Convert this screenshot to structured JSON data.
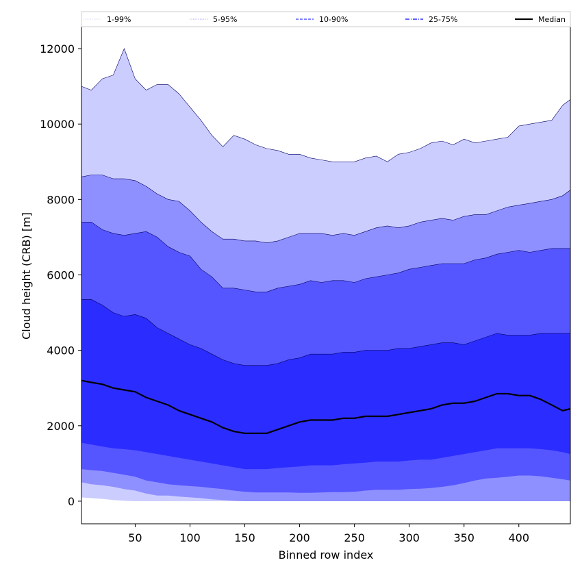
{
  "chart_data": {
    "type": "area",
    "xlabel": "Binned row index",
    "ylabel": "Cloud height (CRB) [m]",
    "xlim": [
      1,
      447
    ],
    "ylim": [
      -600,
      12600
    ],
    "x_ticks": [
      50,
      100,
      150,
      200,
      250,
      300,
      350,
      400
    ],
    "y_ticks": [
      0,
      2000,
      4000,
      6000,
      8000,
      10000,
      12000
    ],
    "grid": false,
    "legend_position": "top",
    "legend": [
      {
        "label": "1-99%",
        "style": "dotted"
      },
      {
        "label": "5-95%",
        "style": "dotted"
      },
      {
        "label": "10-90%",
        "style": "dashed"
      },
      {
        "label": "25-75%",
        "style": "dashdot"
      },
      {
        "label": "Median",
        "style": "solid"
      }
    ],
    "colors": {
      "band_1_99": "#cccdff",
      "band_5_95": "#8f90ff",
      "band_10_90": "#5556ff",
      "band_25_75": "#2b2cff",
      "median": "#000000"
    },
    "x": [
      1,
      10,
      20,
      30,
      40,
      50,
      60,
      70,
      80,
      90,
      100,
      110,
      120,
      130,
      140,
      150,
      160,
      170,
      180,
      190,
      200,
      210,
      220,
      230,
      240,
      250,
      260,
      270,
      280,
      290,
      300,
      310,
      320,
      330,
      340,
      350,
      360,
      370,
      380,
      390,
      400,
      410,
      420,
      430,
      440,
      447
    ],
    "series": [
      {
        "name": "1-99%",
        "lower": [
          100,
          80,
          60,
          30,
          10,
          0,
          0,
          0,
          0,
          0,
          0,
          0,
          0,
          0,
          0,
          0,
          0,
          0,
          0,
          0,
          0,
          0,
          0,
          0,
          0,
          0,
          0,
          0,
          0,
          0,
          0,
          0,
          0,
          0,
          0,
          10,
          50,
          100,
          150,
          200,
          230,
          200,
          180,
          200,
          180,
          180
        ],
        "upper": [
          11000,
          10900,
          11200,
          11300,
          12000,
          11200,
          10900,
          11050,
          11050,
          10800,
          10450,
          10100,
          9700,
          9400,
          9700,
          9600,
          9450,
          9350,
          9300,
          9200,
          9200,
          9100,
          9050,
          9000,
          9000,
          9000,
          9100,
          9150,
          9000,
          9200,
          9250,
          9350,
          9500,
          9550,
          9450,
          9600,
          9500,
          9550,
          9600,
          9650,
          9950,
          10000,
          10050,
          10100,
          10500,
          10650
        ]
      },
      {
        "name": "5-95%",
        "lower": [
          500,
          450,
          420,
          380,
          320,
          280,
          200,
          150,
          150,
          120,
          100,
          80,
          50,
          30,
          10,
          0,
          0,
          0,
          0,
          0,
          0,
          0,
          0,
          0,
          0,
          0,
          0,
          0,
          0,
          0,
          0,
          0,
          0,
          0,
          0,
          0,
          0,
          0,
          0,
          0,
          0,
          0,
          0,
          0,
          0,
          0
        ],
        "upper": [
          8600,
          8650,
          8650,
          8550,
          8550,
          8500,
          8350,
          8150,
          8000,
          7950,
          7700,
          7400,
          7150,
          6950,
          6950,
          6900,
          6900,
          6850,
          6900,
          7000,
          7100,
          7100,
          7100,
          7050,
          7100,
          7050,
          7150,
          7250,
          7300,
          7250,
          7300,
          7400,
          7450,
          7500,
          7450,
          7550,
          7600,
          7600,
          7700,
          7800,
          7850,
          7900,
          7950,
          8000,
          8100,
          8250
        ]
      },
      {
        "name": "10-90%",
        "lower": [
          850,
          820,
          800,
          750,
          700,
          650,
          550,
          500,
          450,
          420,
          400,
          380,
          350,
          320,
          280,
          250,
          230,
          230,
          230,
          230,
          220,
          220,
          230,
          240,
          240,
          250,
          280,
          300,
          300,
          300,
          320,
          330,
          350,
          380,
          420,
          480,
          550,
          600,
          620,
          650,
          680,
          680,
          660,
          620,
          580,
          550
        ],
        "upper": [
          7400,
          7400,
          7200,
          7100,
          7050,
          7100,
          7150,
          7000,
          6750,
          6600,
          6500,
          6150,
          5950,
          5650,
          5650,
          5600,
          5550,
          5550,
          5650,
          5700,
          5750,
          5850,
          5800,
          5850,
          5850,
          5800,
          5900,
          5950,
          6000,
          6050,
          6150,
          6200,
          6250,
          6300,
          6300,
          6300,
          6400,
          6450,
          6550,
          6600,
          6650,
          6600,
          6650,
          6700,
          6700,
          6700
        ]
      },
      {
        "name": "25-75%",
        "lower": [
          1550,
          1500,
          1450,
          1400,
          1380,
          1350,
          1300,
          1250,
          1200,
          1150,
          1100,
          1050,
          1000,
          950,
          900,
          850,
          850,
          850,
          880,
          900,
          920,
          950,
          950,
          950,
          980,
          1000,
          1020,
          1050,
          1050,
          1050,
          1080,
          1100,
          1100,
          1150,
          1200,
          1250,
          1300,
          1350,
          1400,
          1400,
          1400,
          1400,
          1380,
          1350,
          1300,
          1250
        ],
        "upper": [
          5350,
          5350,
          5200,
          5000,
          4900,
          4950,
          4850,
          4600,
          4450,
          4300,
          4150,
          4050,
          3900,
          3750,
          3650,
          3600,
          3600,
          3600,
          3650,
          3750,
          3800,
          3900,
          3900,
          3900,
          3950,
          3950,
          4000,
          4000,
          4000,
          4050,
          4050,
          4100,
          4150,
          4200,
          4200,
          4150,
          4250,
          4350,
          4450,
          4400,
          4400,
          4400,
          4450,
          4450,
          4450,
          4450
        ]
      },
      {
        "name": "Median",
        "values": [
          3200,
          3150,
          3100,
          3000,
          2950,
          2900,
          2750,
          2650,
          2550,
          2400,
          2300,
          2200,
          2100,
          1950,
          1850,
          1800,
          1800,
          1800,
          1900,
          2000,
          2100,
          2150,
          2150,
          2150,
          2200,
          2200,
          2250,
          2250,
          2250,
          2300,
          2350,
          2400,
          2450,
          2550,
          2600,
          2600,
          2650,
          2750,
          2850,
          2850,
          2800,
          2800,
          2700,
          2550,
          2400,
          2450
        ]
      }
    ]
  }
}
